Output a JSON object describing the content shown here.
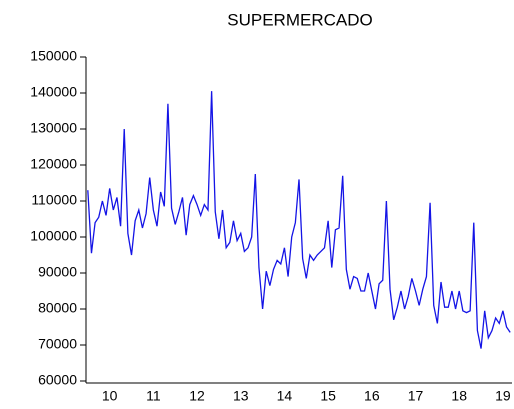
{
  "chart_data": {
    "type": "line",
    "title": "SUPERMERCADO",
    "categories": [
      null,
      null,
      null,
      null,
      null,
      null,
      "10",
      null,
      null,
      null,
      null,
      null,
      null,
      null,
      null,
      null,
      null,
      null,
      "11",
      null,
      null,
      null,
      null,
      null,
      null,
      null,
      null,
      null,
      null,
      null,
      "12",
      null,
      null,
      null,
      null,
      null,
      null,
      null,
      null,
      null,
      null,
      null,
      "13",
      null,
      null,
      null,
      null,
      null,
      null,
      null,
      null,
      null,
      null,
      null,
      "14",
      null,
      null,
      null,
      null,
      null,
      null,
      null,
      null,
      null,
      null,
      null,
      "15",
      null,
      null,
      null,
      null,
      null,
      null,
      null,
      null,
      null,
      null,
      null,
      "16",
      null,
      null,
      null,
      null,
      null,
      null,
      null,
      null,
      null,
      null,
      null,
      "17",
      null,
      null,
      null,
      null,
      null,
      null,
      null,
      null,
      null,
      null,
      null,
      "18",
      null,
      null,
      null,
      null,
      null,
      null,
      null,
      null,
      null,
      null,
      null,
      "19",
      null,
      null
    ],
    "values": [
      113000,
      95500,
      104000,
      105500,
      110000,
      106000,
      113500,
      107500,
      111000,
      103000,
      130000,
      101000,
      95000,
      104500,
      107500,
      102500,
      106500,
      116500,
      107500,
      103000,
      112500,
      108500,
      137000,
      108000,
      103500,
      107000,
      111000,
      100500,
      109000,
      111500,
      109000,
      106000,
      109000,
      107500,
      140500,
      107000,
      99500,
      107500,
      97000,
      98500,
      104500,
      99000,
      101000,
      96000,
      97000,
      100000,
      117500,
      91500,
      80000,
      90500,
      86500,
      91000,
      93500,
      92500,
      97000,
      89000,
      100000,
      104000,
      116000,
      94000,
      88500,
      95000,
      93500,
      95000,
      96000,
      97000,
      104500,
      91500,
      102000,
      102500,
      117000,
      91000,
      85500,
      89000,
      88500,
      85000,
      85000,
      90000,
      85000,
      80000,
      87000,
      88000,
      110000,
      85500,
      77000,
      80500,
      85000,
      80000,
      83500,
      88500,
      85000,
      81000,
      85500,
      89000,
      109500,
      81000,
      76000,
      87500,
      80500,
      80500,
      85000,
      80000,
      85000,
      79500,
      79000,
      79500,
      104000,
      74000,
      69000,
      79500,
      72000,
      74000,
      77500,
      76000,
      79500,
      75000,
      73500
    ],
    "color": "#1414e6",
    "ylim": [
      60000,
      150000
    ],
    "yticks": [
      60000,
      70000,
      80000,
      90000,
      100000,
      110000,
      120000,
      130000,
      140000,
      150000
    ]
  }
}
